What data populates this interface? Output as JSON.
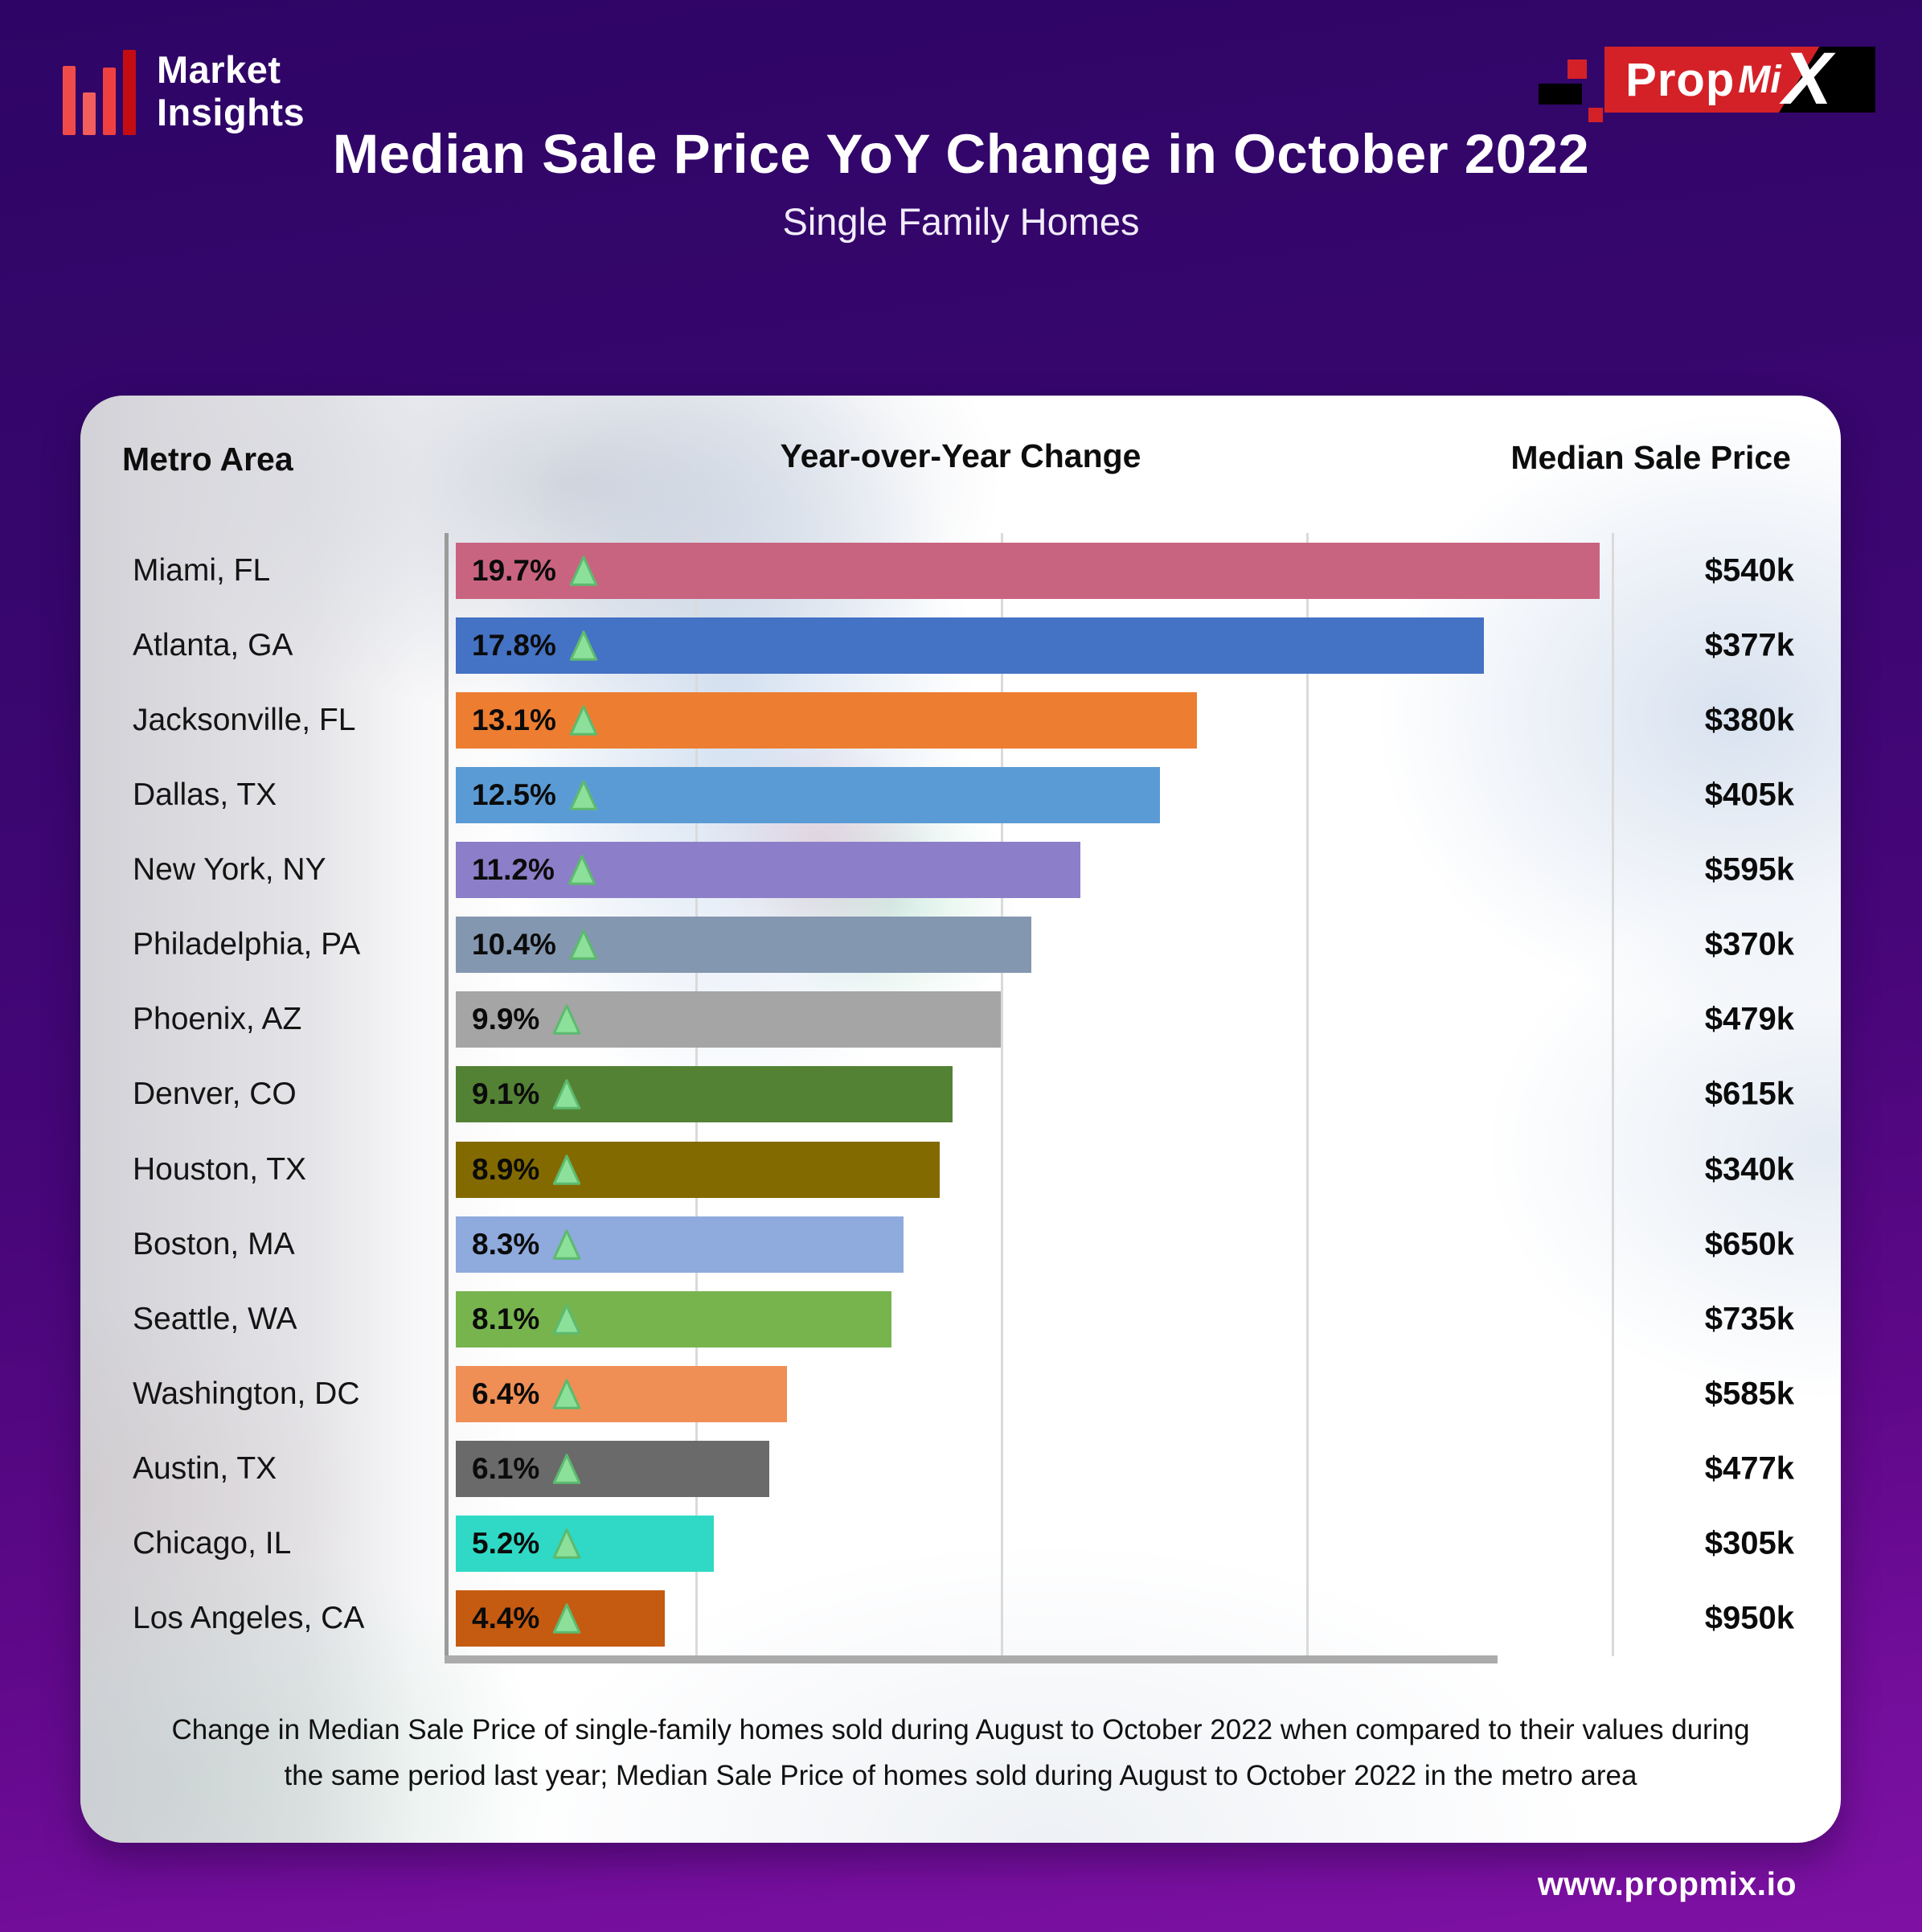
{
  "brand": {
    "market_line1": "Market",
    "market_line2": "Insights",
    "propmix_prop": "Prop",
    "propmix_mi": "Mi",
    "propmix_x": "X"
  },
  "title": "Median Sale Price YoY Change in October 2022",
  "subtitle": "Single Family Homes",
  "table": {
    "col_metro": "Metro Area",
    "col_change": "Year-over-Year Change",
    "col_price": "Median Sale Price"
  },
  "rows": [
    {
      "metro": "Miami, FL",
      "change": "19.7%",
      "value": 19.7,
      "price": "$540k",
      "color": "#c96480"
    },
    {
      "metro": "Atlanta, GA",
      "change": "17.8%",
      "value": 17.8,
      "price": "$377k",
      "color": "#4472c4"
    },
    {
      "metro": "Jacksonville, FL",
      "change": "13.1%",
      "value": 13.1,
      "price": "$380k",
      "color": "#ed7d31"
    },
    {
      "metro": "Dallas, TX",
      "change": "12.5%",
      "value": 12.5,
      "price": "$405k",
      "color": "#5b9bd5"
    },
    {
      "metro": "New York, NY",
      "change": "11.2%",
      "value": 11.2,
      "price": "$595k",
      "color": "#8c7ec8"
    },
    {
      "metro": "Philadelphia, PA",
      "change": "10.4%",
      "value": 10.4,
      "price": "$370k",
      "color": "#8497b0"
    },
    {
      "metro": "Phoenix, AZ",
      "change": "9.9%",
      "value": 9.9,
      "price": "$479k",
      "color": "#a5a5a5"
    },
    {
      "metro": "Denver, CO",
      "change": "9.1%",
      "value": 9.1,
      "price": "$615k",
      "color": "#548235"
    },
    {
      "metro": "Houston, TX",
      "change": "8.9%",
      "value": 8.9,
      "price": "$340k",
      "color": "#836a00"
    },
    {
      "metro": "Boston, MA",
      "change": "8.3%",
      "value": 8.3,
      "price": "$650k",
      "color": "#8faadc"
    },
    {
      "metro": "Seattle, WA",
      "change": "8.1%",
      "value": 8.1,
      "price": "$735k",
      "color": "#77b44e"
    },
    {
      "metro": "Washington, DC",
      "change": "6.4%",
      "value": 6.4,
      "price": "$585k",
      "color": "#ef8f55"
    },
    {
      "metro": "Austin, TX",
      "change": "6.1%",
      "value": 6.1,
      "price": "$477k",
      "color": "#6a6a6a"
    },
    {
      "metro": "Chicago, IL",
      "change": "5.2%",
      "value": 5.2,
      "price": "$305k",
      "color": "#2fd9c5"
    },
    {
      "metro": "Los Angeles, CA",
      "change": "4.4%",
      "value": 4.4,
      "price": "$950k",
      "color": "#c55a11"
    }
  ],
  "colors": {
    "triangle_fill": "#8ce09a",
    "triangle_stroke": "#5cba6e",
    "brand_red": "#d42127",
    "page_purple_top": "#2e0566",
    "page_purple_bottom": "#7e11a4"
  },
  "footnote": "Change in Median Sale Price of single-family homes sold during August to October 2022 when compared to their values during the same period last year; Median Sale Price of homes sold during August to October 2022 in the metro area",
  "footer": {
    "url": "www.propmix.io"
  },
  "chart_data": {
    "type": "bar",
    "orientation": "horizontal",
    "title": "Median Sale Price YoY Change in October 2022",
    "subtitle": "Single Family Homes",
    "categories": [
      "Miami, FL",
      "Atlanta, GA",
      "Jacksonville, FL",
      "Dallas, TX",
      "New York, NY",
      "Philadelphia, PA",
      "Phoenix, AZ",
      "Denver, CO",
      "Houston, TX",
      "Boston, MA",
      "Seattle, WA",
      "Washington, DC",
      "Austin, TX",
      "Chicago, IL",
      "Los Angeles, CA"
    ],
    "series": [
      {
        "name": "Year-over-Year Change (%)",
        "values": [
          19.7,
          17.8,
          13.1,
          12.5,
          11.2,
          10.4,
          9.9,
          9.1,
          8.9,
          8.3,
          8.1,
          6.4,
          6.1,
          5.2,
          4.4
        ]
      },
      {
        "name": "Median Sale Price ($k)",
        "values": [
          540,
          377,
          380,
          405,
          595,
          370,
          479,
          615,
          340,
          650,
          735,
          585,
          477,
          305,
          950
        ]
      }
    ],
    "xlim": [
      0,
      20
    ],
    "grid": true,
    "legend_position": "none",
    "bar_colors": [
      "#c96480",
      "#4472c4",
      "#ed7d31",
      "#5b9bd5",
      "#8c7ec8",
      "#8497b0",
      "#a5a5a5",
      "#548235",
      "#836a00",
      "#8faadc",
      "#77b44e",
      "#ef8f55",
      "#6a6a6a",
      "#2fd9c5",
      "#c55a11"
    ]
  }
}
